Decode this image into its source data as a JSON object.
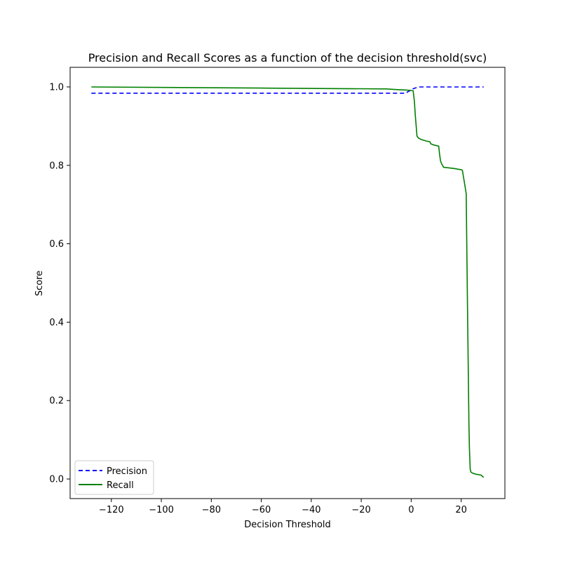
{
  "chart_data": {
    "type": "line",
    "title": "Precision and Recall Scores as a function of the decision threshold(svc)",
    "xlabel": "Decision Threshold",
    "ylabel": "Score",
    "xlim": [
      -136.5,
      37.5
    ],
    "ylim": [
      -0.05,
      1.05
    ],
    "xticks": [
      -120,
      -100,
      -80,
      -60,
      -40,
      -20,
      0,
      20
    ],
    "yticks": [
      0.0,
      0.2,
      0.4,
      0.6,
      0.8,
      1.0
    ],
    "xtick_labels": [
      "−120",
      "−100",
      "−80",
      "−60",
      "−40",
      "−20",
      "0",
      "20"
    ],
    "ytick_labels": [
      "0.0",
      "0.2",
      "0.4",
      "0.6",
      "0.8",
      "1.0"
    ],
    "grid": false,
    "legend_position": "bottom-left",
    "series": [
      {
        "name": "Precision",
        "color": "#0000ff",
        "style": "dashed",
        "x": [
          -128,
          -2,
          -1.5,
          0,
          1,
          2,
          3,
          10,
          20,
          29
        ],
        "y": [
          0.984,
          0.984,
          0.987,
          0.992,
          0.996,
          0.998,
          1.0,
          1.0,
          1.0,
          1.0
        ]
      },
      {
        "name": "Recall",
        "color": "#008000",
        "style": "solid",
        "x": [
          -128,
          -60,
          -10,
          -5,
          -2,
          0,
          0.8,
          1.3,
          1.6,
          2.0,
          2.3,
          2.8,
          4,
          6,
          7.5,
          7.8,
          9,
          11,
          11.3,
          11.7,
          12.1,
          13,
          17,
          19,
          20,
          20.5,
          21.2,
          22,
          22.5,
          23.1,
          23.3,
          23.6,
          23.9,
          24.5,
          26,
          28,
          29
        ],
        "y": [
          1.0,
          0.997,
          0.995,
          0.993,
          0.992,
          0.991,
          0.99,
          0.962,
          0.93,
          0.9,
          0.875,
          0.87,
          0.866,
          0.862,
          0.86,
          0.855,
          0.852,
          0.849,
          0.832,
          0.812,
          0.805,
          0.795,
          0.792,
          0.79,
          0.789,
          0.787,
          0.76,
          0.728,
          0.45,
          0.14,
          0.08,
          0.025,
          0.018,
          0.015,
          0.012,
          0.01,
          0.004
        ]
      }
    ]
  }
}
